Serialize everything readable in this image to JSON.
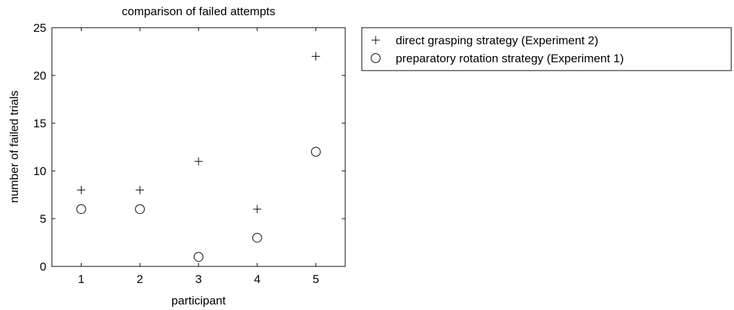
{
  "chart_data": {
    "type": "scatter",
    "title": "comparison of failed attempts",
    "xlabel": "participant",
    "ylabel": "number of failed trials",
    "xlim": [
      0.5,
      5.5
    ],
    "ylim": [
      0,
      25
    ],
    "xticks": [
      1,
      2,
      3,
      4,
      5
    ],
    "yticks": [
      0,
      5,
      10,
      15,
      20,
      25
    ],
    "grid": false,
    "legend_position": "outside-right-top",
    "series": [
      {
        "name": "direct grasping strategy (Experiment 2)",
        "marker": "plus",
        "x": [
          1,
          2,
          3,
          4,
          5
        ],
        "y": [
          8,
          8,
          11,
          6,
          22
        ]
      },
      {
        "name": "preparatory rotation strategy (Experiment 1)",
        "marker": "circle",
        "x": [
          1,
          2,
          3,
          4,
          5
        ],
        "y": [
          6,
          6,
          1,
          3,
          12
        ]
      }
    ]
  }
}
